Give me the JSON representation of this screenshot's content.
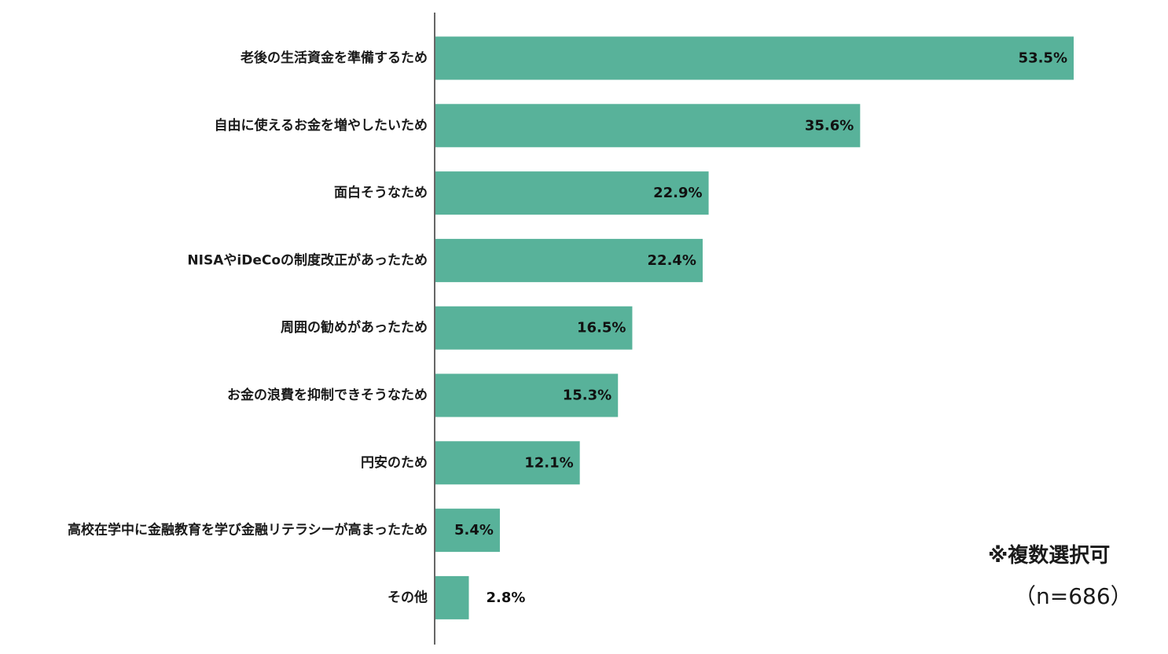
{
  "chart_data": {
    "type": "bar",
    "orientation": "horizontal",
    "categories": [
      "老後の生活資金を準備するため",
      "自由に使えるお金を増やしたいため",
      "面白そうなため",
      "NISAやiDeCoの制度改正があったため",
      "周囲の勧めがあったため",
      "お金の浪費を抑制できそうなため",
      "円安のため",
      "高校在学中に金融教育を学び金融リテラシーが高まったため",
      "その他"
    ],
    "values": [
      53.5,
      35.6,
      22.9,
      22.4,
      16.5,
      15.3,
      12.1,
      5.4,
      2.8
    ],
    "value_labels": [
      "53.5%",
      "35.6%",
      "22.9%",
      "22.4%",
      "16.5%",
      "15.3%",
      "12.1%",
      "5.4%",
      "2.8%"
    ],
    "xlim": [
      0,
      60
    ],
    "grid": false,
    "bar_color": "#58b29a"
  },
  "notes": {
    "multiple": "※複数選択可",
    "sample": "（n=686）"
  }
}
